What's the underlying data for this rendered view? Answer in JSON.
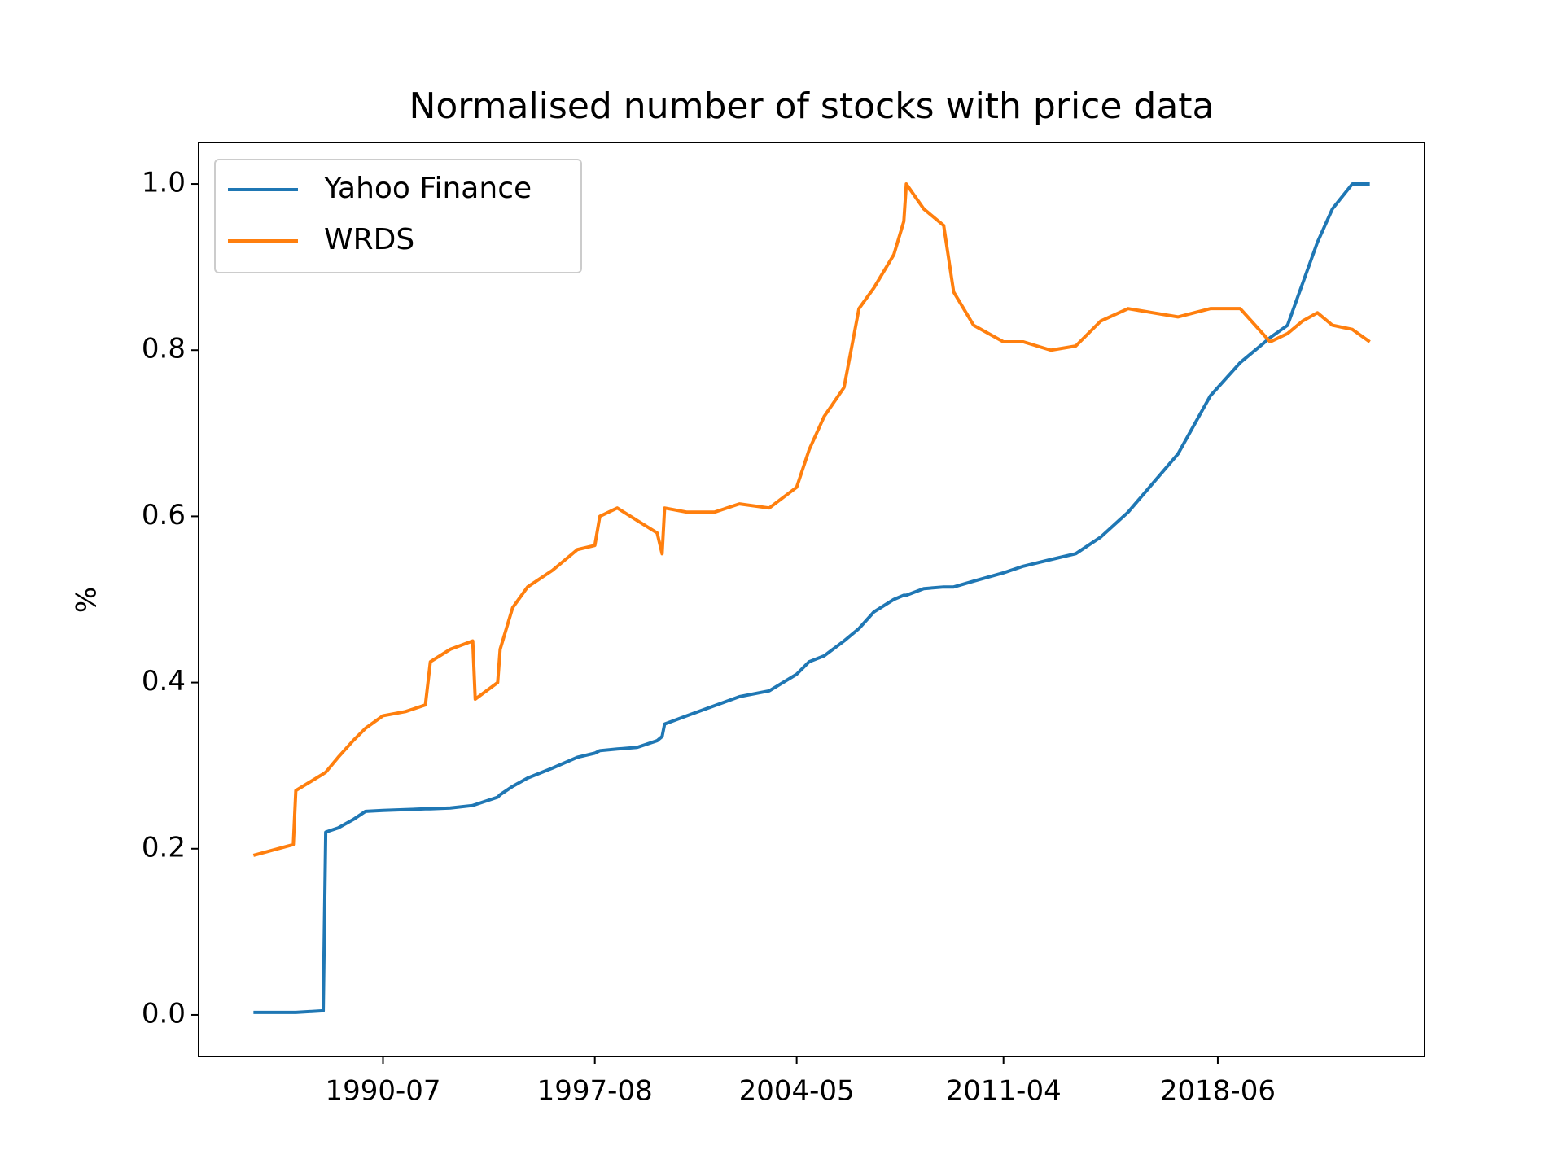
{
  "chart_data": {
    "type": "line",
    "title": "Normalised number of stocks with price data",
    "ylabel": "%",
    "x": [
      "1986-03",
      "1987-07",
      "1987-08",
      "1988-07",
      "1988-08",
      "1989-01",
      "1989-07",
      "1989-12",
      "1990-07",
      "1991-04",
      "1991-12",
      "1992-02",
      "1992-10",
      "1993-07",
      "1993-08",
      "1994-05",
      "1994-06",
      "1994-11",
      "1995-05",
      "1996-03",
      "1997-01",
      "1997-08",
      "1997-10",
      "1998-05",
      "1999-01",
      "1999-09",
      "1999-11",
      "1999-12",
      "2000-09",
      "2001-08",
      "2002-06",
      "2003-06",
      "2004-05",
      "2004-10",
      "2005-04",
      "2005-12",
      "2006-06",
      "2006-12",
      "2007-08",
      "2007-12",
      "2008-01",
      "2008-08",
      "2009-04",
      "2009-08",
      "2010-04",
      "2011-04",
      "2011-12",
      "2012-11",
      "2013-09",
      "2014-07",
      "2015-06",
      "2016-04",
      "2017-02",
      "2018-03",
      "2019-03",
      "2020-03",
      "2020-10",
      "2021-04",
      "2021-10",
      "2022-04",
      "2022-12",
      "2023-07"
    ],
    "series": [
      {
        "name": "Yahoo Finance",
        "color": "#1f77b4",
        "values": [
          0.003,
          0.003,
          0.003,
          0.005,
          0.22,
          0.225,
          0.235,
          0.245,
          0.246,
          0.247,
          0.248,
          0.248,
          0.249,
          0.252,
          0.253,
          0.262,
          0.265,
          0.275,
          0.285,
          0.297,
          0.31,
          0.315,
          0.318,
          0.32,
          0.322,
          0.33,
          0.335,
          0.35,
          0.36,
          0.372,
          0.383,
          0.39,
          0.41,
          0.425,
          0.432,
          0.45,
          0.465,
          0.485,
          0.5,
          0.505,
          0.505,
          0.513,
          0.515,
          0.515,
          0.522,
          0.532,
          0.54,
          0.548,
          0.555,
          0.575,
          0.605,
          0.64,
          0.675,
          0.745,
          0.785,
          0.815,
          0.83,
          0.88,
          0.93,
          0.97,
          1.0,
          1.0
        ]
      },
      {
        "name": "WRDS",
        "color": "#ff7f0e",
        "values": [
          0.192,
          0.205,
          0.27,
          0.29,
          0.292,
          0.31,
          0.33,
          0.345,
          0.36,
          0.365,
          0.373,
          0.425,
          0.44,
          0.45,
          0.38,
          0.4,
          0.44,
          0.49,
          0.515,
          0.535,
          0.56,
          0.565,
          0.6,
          0.61,
          0.595,
          0.58,
          0.555,
          0.61,
          0.605,
          0.605,
          0.615,
          0.61,
          0.635,
          0.68,
          0.72,
          0.755,
          0.85,
          0.875,
          0.915,
          0.955,
          1.0,
          0.97,
          0.95,
          0.87,
          0.83,
          0.81,
          0.81,
          0.8,
          0.805,
          0.835,
          0.85,
          0.845,
          0.84,
          0.85,
          0.85,
          0.81,
          0.82,
          0.835,
          0.845,
          0.83,
          0.825,
          0.81
        ]
      }
    ],
    "xlim": [
      "1984-05",
      "2025-05"
    ],
    "xticks": [
      "1990-07",
      "1997-08",
      "2004-05",
      "2011-04",
      "2018-06"
    ],
    "ylim": [
      -0.05,
      1.05
    ],
    "yticks": [
      {
        "value": 0,
        "label": "0.0"
      },
      0.2,
      0.4,
      0.6,
      0.8,
      {
        "value": 1,
        "label": "1.0"
      }
    ],
    "legend": "upper left"
  }
}
